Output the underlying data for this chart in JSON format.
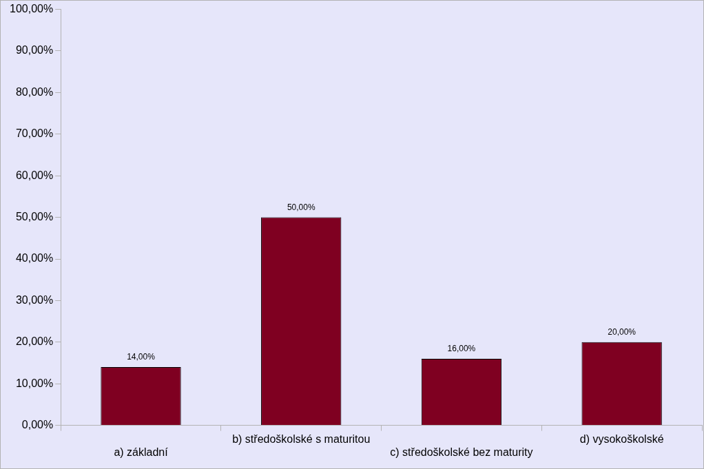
{
  "chart_data": {
    "type": "bar",
    "categories": [
      "a) základní",
      "b) středoškolské s maturitou",
      "c) středoškolské bez maturity",
      "d) vysokoškolské"
    ],
    "values": [
      14,
      50,
      16,
      20
    ],
    "color": "#7f0021",
    "value_labels": [
      "14,00%",
      "50,00%",
      "16,00%",
      "20,00%"
    ],
    "ylim": [
      0,
      100
    ],
    "yticks": [
      {
        "value": 0,
        "label": "0,00%"
      },
      {
        "value": 10,
        "label": "10,00%"
      },
      {
        "value": 20,
        "label": "20,00%"
      },
      {
        "value": 30,
        "label": "30,00%"
      },
      {
        "value": 40,
        "label": "40,00%"
      },
      {
        "value": 50,
        "label": "50,00%"
      },
      {
        "value": 60,
        "label": "60,00%"
      },
      {
        "value": 70,
        "label": "70,00%"
      },
      {
        "value": 80,
        "label": "80,00%"
      },
      {
        "value": 90,
        "label": "90,00%"
      },
      {
        "value": 100,
        "label": "100,00%"
      }
    ],
    "grid": false,
    "legend": false
  }
}
